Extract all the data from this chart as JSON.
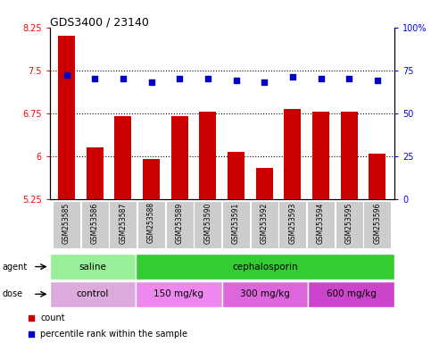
{
  "title": "GDS3400 / 23140",
  "categories": [
    "GSM253585",
    "GSM253586",
    "GSM253587",
    "GSM253588",
    "GSM253589",
    "GSM253590",
    "GSM253591",
    "GSM253592",
    "GSM253593",
    "GSM253594",
    "GSM253595",
    "GSM253596"
  ],
  "bar_values": [
    8.1,
    6.15,
    6.7,
    5.95,
    6.7,
    6.78,
    6.07,
    5.8,
    6.83,
    6.77,
    6.77,
    6.05
  ],
  "percentile_values": [
    72,
    70,
    70,
    68,
    70,
    70,
    69,
    68,
    71,
    70,
    70,
    69
  ],
  "bar_color": "#cc0000",
  "dot_color": "#0000cc",
  "ylim_left": [
    5.25,
    8.25
  ],
  "ylim_right": [
    0,
    100
  ],
  "yticks_left": [
    5.25,
    6.0,
    6.75,
    7.5,
    8.25
  ],
  "yticks_right": [
    0,
    25,
    50,
    75,
    100
  ],
  "ytick_labels_left": [
    "5.25",
    "6",
    "6.75",
    "7.5",
    "8.25"
  ],
  "ytick_labels_right": [
    "0",
    "25",
    "50",
    "75",
    "100%"
  ],
  "grid_values": [
    6.0,
    6.75,
    7.5
  ],
  "agent_groups": [
    {
      "label": "saline",
      "start": 0,
      "end": 3,
      "color": "#99ee99"
    },
    {
      "label": "cephalosporin",
      "start": 3,
      "end": 12,
      "color": "#33cc33"
    }
  ],
  "dose_groups": [
    {
      "label": "control",
      "start": 0,
      "end": 3,
      "color": "#ddaadd"
    },
    {
      "label": "150 mg/kg",
      "start": 3,
      "end": 6,
      "color": "#ee88ee"
    },
    {
      "label": "300 mg/kg",
      "start": 6,
      "end": 9,
      "color": "#dd66dd"
    },
    {
      "label": "600 mg/kg",
      "start": 9,
      "end": 12,
      "color": "#cc44cc"
    }
  ],
  "background_plot": "#ffffff",
  "background_xtick": "#cccccc"
}
